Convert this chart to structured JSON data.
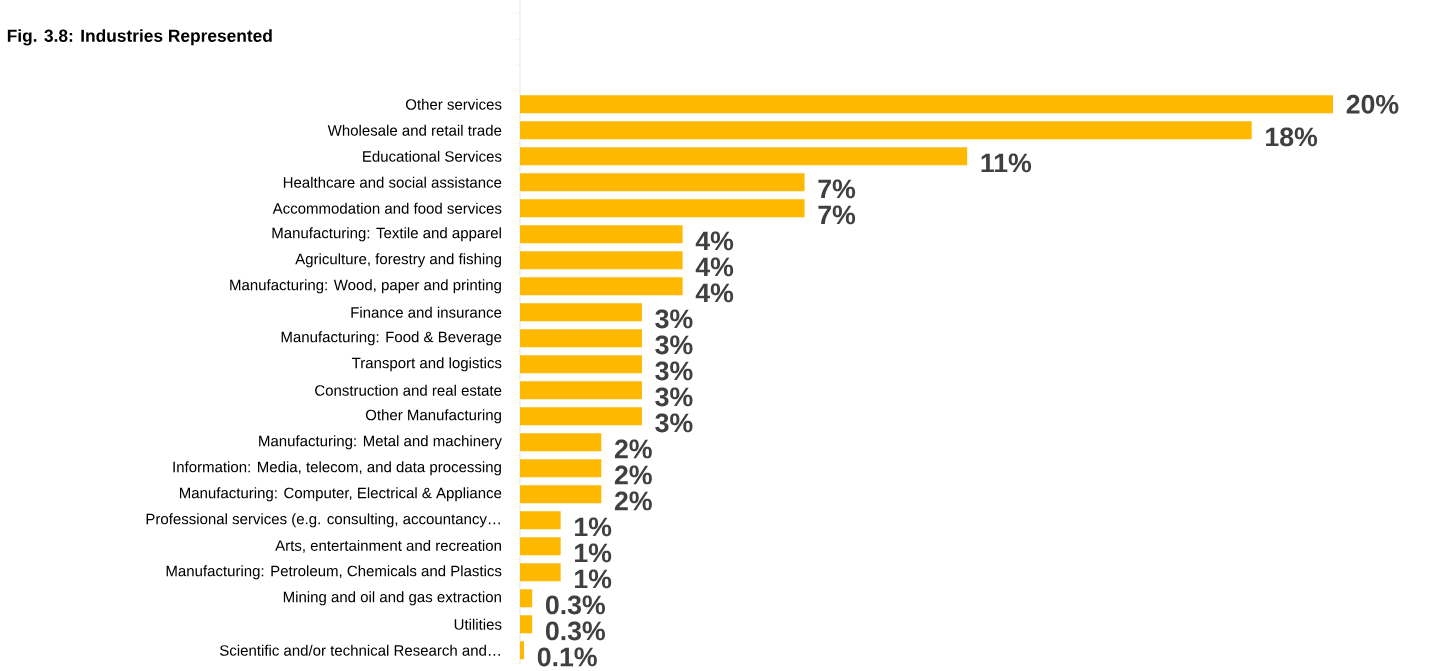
{
  "chart_data": {
    "type": "bar",
    "orientation": "horizontal",
    "title": "Fig. 3.8: Industries Represented",
    "categories": [
      "Other services",
      "Wholesale and retail trade",
      "Educational Services",
      "Healthcare and social assistance",
      "Accommodation and food services",
      "Manufacturing: Textile and apparel",
      "Agriculture, forestry and fishing",
      "Manufacturing: Wood, paper and printing",
      "Finance and insurance",
      "Manufacturing: Food & Beverage",
      "Transport and logistics",
      "Construction and real estate",
      "Other Manufacturing",
      "Manufacturing: Metal and machinery",
      "Information: Media, telecom, and data processing",
      "Manufacturing: Computer, Electrical & Appliance",
      "Professional services (e.g. consulting, accountancy…",
      "Arts, entertainment and recreation",
      "Manufacturing: Petroleum, Chemicals and Plastics",
      "Mining and oil and gas extraction",
      "Utilities",
      "Scientific and/or technical Research and…"
    ],
    "values": [
      20,
      18,
      11,
      7,
      7,
      4,
      4,
      4,
      3,
      3,
      3,
      3,
      3,
      2,
      2,
      2,
      1,
      1,
      1,
      0.3,
      0.3,
      0.1
    ],
    "value_labels": [
      "20%",
      "18%",
      "11%",
      "7%",
      "7%",
      "4%",
      "4%",
      "4%",
      "3%",
      "3%",
      "3%",
      "3%",
      "3%",
      "2%",
      "2%",
      "2%",
      "1%",
      "1%",
      "1%",
      "0.3%",
      "0.3%",
      "0.1%"
    ],
    "color": "#ffb800"
  }
}
